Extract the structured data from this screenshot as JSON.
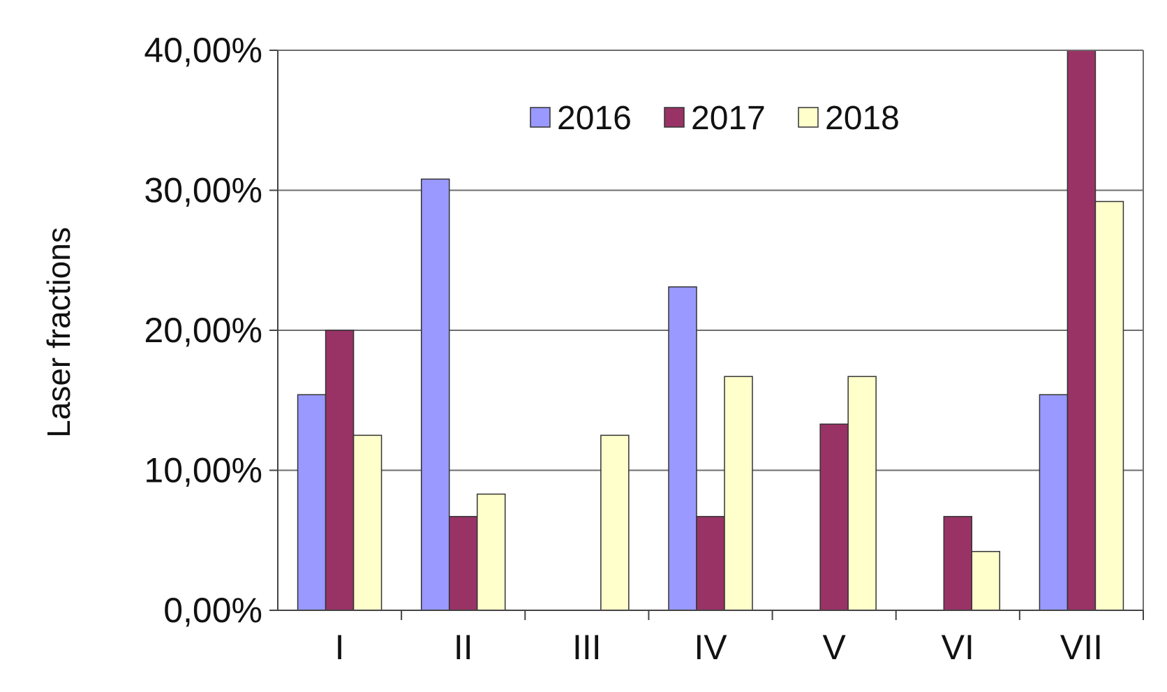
{
  "chart_data": {
    "type": "bar",
    "title": "",
    "xlabel": "",
    "ylabel": "Laser fractions",
    "categories": [
      "I",
      "II",
      "III",
      "IV",
      "V",
      "VI",
      "VII"
    ],
    "series": [
      {
        "name": "2016",
        "color": "#9999ff",
        "values": [
          15.4,
          30.8,
          0,
          23.1,
          0,
          0,
          15.4
        ]
      },
      {
        "name": "2017",
        "color": "#993366",
        "values": [
          20.0,
          6.7,
          0,
          6.7,
          13.3,
          6.7,
          40.0
        ]
      },
      {
        "name": "2018",
        "color": "#ffffcc",
        "values": [
          12.5,
          8.3,
          12.5,
          16.7,
          16.7,
          4.2,
          29.2
        ]
      }
    ],
    "ylim": [
      0,
      40
    ],
    "yticks": [
      {
        "value": 0,
        "label": "0,00%"
      },
      {
        "value": 10,
        "label": "10,00%"
      },
      {
        "value": 20,
        "label": "20,00%"
      },
      {
        "value": 30,
        "label": "30,00%"
      },
      {
        "value": 40,
        "label": "40,00%"
      }
    ],
    "grid": true,
    "legend_position": "top-center"
  }
}
